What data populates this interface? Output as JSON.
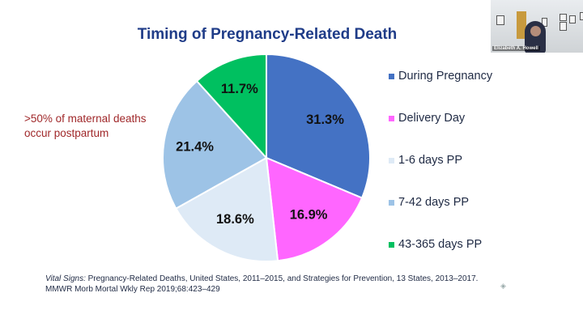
{
  "chart_data": {
    "type": "pie",
    "title": "Timing of Pregnancy-Related Death",
    "categories": [
      "During Pregnancy",
      "Delivery Day",
      "1-6 days PP",
      "7-42 days PP",
      "43-365 days PP"
    ],
    "values": [
      31.3,
      16.9,
      18.6,
      21.4,
      11.7
    ],
    "data_labels": [
      "31.3%",
      "16.9%",
      "18.6%",
      "21.4%",
      "11.7%"
    ],
    "colors": [
      "#4472c4",
      "#ff66ff",
      "#deeaf6",
      "#9dc3e6",
      "#00c060"
    ],
    "legend_position": "right",
    "start_angle_deg": 0,
    "direction": "clockwise"
  },
  "annotation": {
    "line1": ">50% of maternal deaths",
    "line2": "occur  postpartum"
  },
  "citation": {
    "italic": "Vital Signs:",
    "line1_rest": " Pregnancy-Related Deaths, United States, 2011–2015, and Strategies for Prevention, 13 States, 2013–2017.",
    "line2": "MMWR Morb Mortal Wkly Rep 2019;68:423–429"
  },
  "video": {
    "participant_name": "Elizabeth A. Howell"
  },
  "icons": {
    "slide_nav": "diamond-nav-icon"
  }
}
